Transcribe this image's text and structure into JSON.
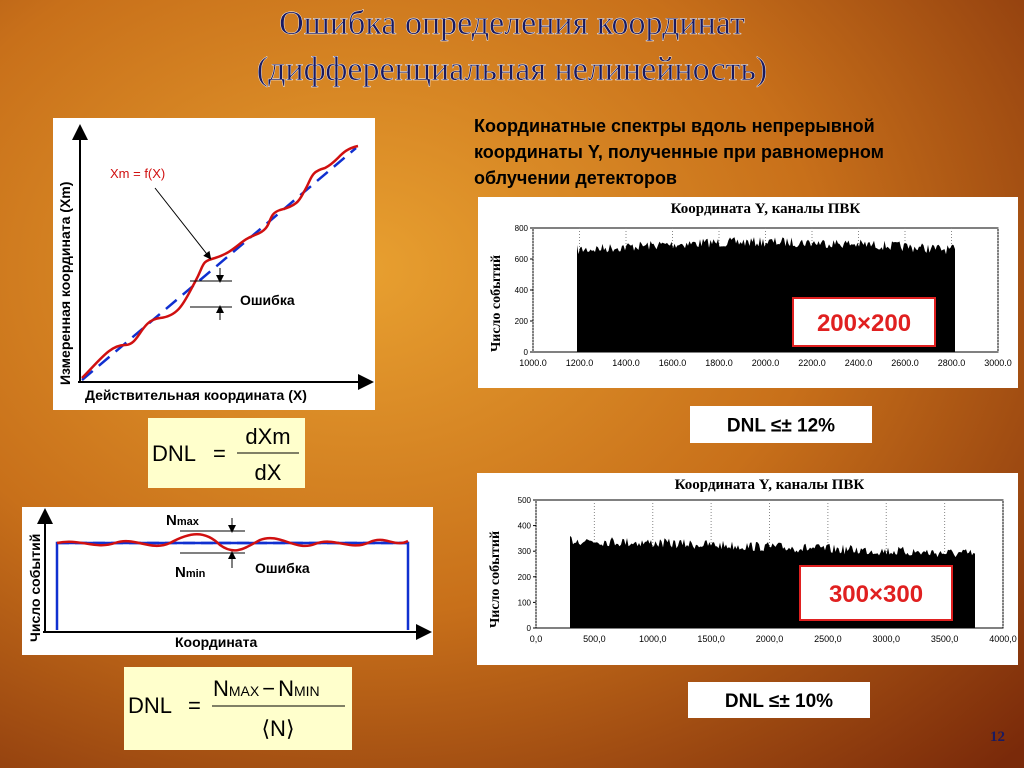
{
  "title": [
    "Ошибка определения координат",
    "(дифференциальная нелинейность)"
  ],
  "description": [
    "Координатные спектры вдоль непрерывной",
    "координаты Y, полученные при равномерном",
    "облучении детекторов"
  ],
  "diagram1": {
    "y_label": "Измеренная координата (Xm)",
    "x_label": "Действительная координата (X)",
    "curve_label": "Xm = f(X)",
    "error_label": "Ошибка"
  },
  "formula1": {
    "lhs": "DNL",
    "eq": "=",
    "num": "dXm",
    "den": "dX"
  },
  "diagram2": {
    "y_label": "Число событий",
    "x_label": "Координата",
    "nmax": "N",
    "nmax_sub": "max",
    "nmin": "N",
    "nmin_sub": "min",
    "error_label": "Ошибка"
  },
  "formula2": {
    "lhs": "DNL",
    "eq": "=",
    "num_a": "N",
    "num_a_sub": "MAX",
    "minus": "−",
    "num_b": "N",
    "num_b_sub": "MIN",
    "den": "⟨N⟩"
  },
  "spectrum1": {
    "title": "Координата Y, каналы ПВК",
    "y_label": "Число событий",
    "yticks": [
      "0",
      "200",
      "400",
      "600",
      "800"
    ],
    "xticks": [
      "1000.0",
      "1200.0",
      "1400.0",
      "1600.0",
      "1800.0",
      "2000.0",
      "2200.0",
      "2400.0",
      "2600.0",
      "2800.0",
      "3000.0"
    ],
    "size": "200×200",
    "dnl": "DNL ≤± 12%"
  },
  "spectrum2": {
    "title": "Координата Y, каналы ПВК",
    "y_label": "Число событий",
    "yticks": [
      "0",
      "100",
      "200",
      "300",
      "400",
      "500"
    ],
    "xticks": [
      "0,0",
      "500,0",
      "1000,0",
      "1500,0",
      "2000,0",
      "2500,0",
      "3000,0",
      "3500,0",
      "4000,0"
    ],
    "size": "300×300",
    "dnl": "DNL ≤± 10%"
  },
  "page_number": "12"
}
